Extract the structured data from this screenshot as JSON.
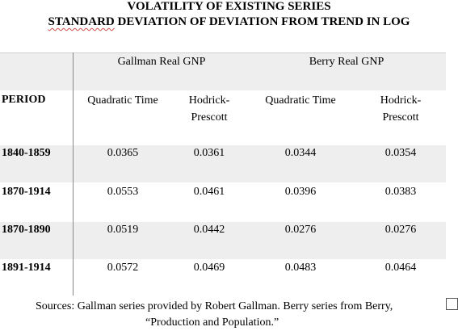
{
  "title": {
    "line1": "VOLATILITY OF EXISTING SERIES",
    "line2_underlined": "STANDARD",
    "line2_rest": " DEVIATION OF DEVIATION FROM TREND IN LOG"
  },
  "table": {
    "groups": [
      "Gallman Real GNP",
      "Berry Real GNP"
    ],
    "period_header": "PERIOD",
    "subheaders": [
      {
        "line1": "Quadratic Time",
        "line2": ""
      },
      {
        "line1": "Hodrick-",
        "line2": "Prescott"
      },
      {
        "line1": "Quadratic Time",
        "line2": ""
      },
      {
        "line1": "Hodrick-",
        "line2": "Prescott"
      }
    ],
    "rows": [
      {
        "period": "1840-1859",
        "values": [
          "0.0365",
          "0.0361",
          "0.0344",
          "0.0354"
        ]
      },
      {
        "period": "1870-1914",
        "values": [
          "0.0553",
          "0.0461",
          "0.0396",
          "0.0383"
        ]
      },
      {
        "period": "1870-1890",
        "values": [
          "0.0519",
          "0.0442",
          "0.0276",
          "0.0276"
        ]
      },
      {
        "period": "1891-1914",
        "values": [
          "0.0572",
          "0.0469",
          "0.0483",
          "0.0464"
        ]
      }
    ]
  },
  "sources": {
    "line1": "Sources: Gallman series provided by Robert Gallman. Berry series from Berry,",
    "line2": "“Production and Population.”"
  },
  "colors": {
    "band": "#eeeeee",
    "rule": "#888888",
    "spellcheck": "#d04a4a"
  }
}
